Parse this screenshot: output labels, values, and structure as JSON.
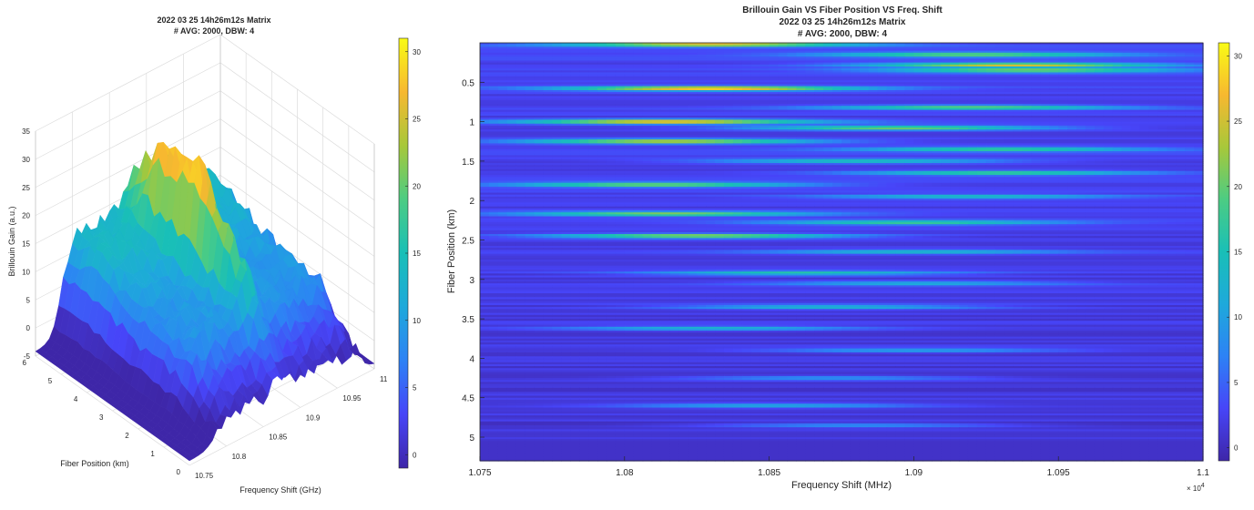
{
  "colors": {
    "colormap": [
      "#3e26a8",
      "#4745f8",
      "#2d82f5",
      "#1ea9db",
      "#19bfb7",
      "#4ccc83",
      "#a7c83a",
      "#f7b830",
      "#f9fb15"
    ],
    "background": "#ffffff",
    "axis": "#262626",
    "grid": "#dcdcdc"
  },
  "chart_data": [
    {
      "type": "surface",
      "title_line1": "2022 03 25 14h26m12s Matrix",
      "title_line2": "# AVG: 2000, DBW: 4",
      "xlabel": "Frequency Shift (GHz)",
      "ylabel": "Fiber Position  (km)",
      "zlabel": "Brillouin Gain (a.u.)",
      "x_ticks": [
        "10.75",
        "10.8",
        "10.85",
        "10.9",
        "10.95",
        "11"
      ],
      "y_ticks": [
        "0",
        "1",
        "2",
        "3",
        "4",
        "5",
        "6"
      ],
      "z_ticks": [
        "-5",
        "0",
        "5",
        "10",
        "15",
        "20",
        "25",
        "30",
        "35"
      ],
      "xlim": [
        10.75,
        11
      ],
      "ylim": [
        0,
        6
      ],
      "zlim": [
        -5,
        35
      ],
      "colorbar": {
        "ticks": [
          "0",
          "5",
          "10",
          "15",
          "20",
          "25",
          "30"
        ],
        "range": [
          -1,
          31
        ]
      },
      "grid": true
    },
    {
      "type": "heatmap",
      "title_line1": "Brillouin Gain VS Fiber Position VS Freq. Shift",
      "title_line2": "2022 03 25 14h26m12s Matrix",
      "title_line3": "# AVG: 2000, DBW: 4",
      "xlabel": "Frequency Shift (MHz)",
      "ylabel": "Fiber Position (km)",
      "x_ticks": [
        "1.075",
        "1.08",
        "1.085",
        "1.09",
        "1.095",
        "1.1"
      ],
      "x_exponent": "× 10",
      "x_exponent_power": "4",
      "y_ticks": [
        "0.5",
        "1",
        "1.5",
        "2",
        "2.5",
        "3",
        "3.5",
        "4",
        "4.5",
        "5"
      ],
      "xlim": [
        10750,
        11000
      ],
      "ylim": [
        0,
        5.3
      ],
      "colorbar": {
        "ticks": [
          "0",
          "5",
          "10",
          "15",
          "20",
          "25",
          "30"
        ],
        "range": [
          -1,
          31
        ]
      },
      "bright_bands": [
        {
          "pos": 0.02,
          "peak": 10830,
          "val": 26
        },
        {
          "pos": 0.15,
          "peak": 10920,
          "val": 19
        },
        {
          "pos": 0.28,
          "peak": 10935,
          "val": 24
        },
        {
          "pos": 0.35,
          "peak": 10940,
          "val": 20
        },
        {
          "pos": 0.58,
          "peak": 10830,
          "val": 28
        },
        {
          "pos": 0.82,
          "peak": 10920,
          "val": 18
        },
        {
          "pos": 1.0,
          "peak": 10815,
          "val": 27
        },
        {
          "pos": 1.08,
          "peak": 10895,
          "val": 20
        },
        {
          "pos": 1.25,
          "peak": 10815,
          "val": 25
        },
        {
          "pos": 1.35,
          "peak": 10930,
          "val": 16
        },
        {
          "pos": 1.5,
          "peak": 10880,
          "val": 14
        },
        {
          "pos": 1.65,
          "peak": 10930,
          "val": 17
        },
        {
          "pos": 1.8,
          "peak": 10810,
          "val": 21
        },
        {
          "pos": 1.95,
          "peak": 10920,
          "val": 12
        },
        {
          "pos": 2.17,
          "peak": 10815,
          "val": 20
        },
        {
          "pos": 2.28,
          "peak": 10900,
          "val": 16
        },
        {
          "pos": 2.45,
          "peak": 10825,
          "val": 22
        },
        {
          "pos": 2.65,
          "peak": 10900,
          "val": 11
        },
        {
          "pos": 2.92,
          "peak": 10860,
          "val": 14
        },
        {
          "pos": 3.05,
          "peak": 10900,
          "val": 10
        },
        {
          "pos": 3.35,
          "peak": 10870,
          "val": 12
        },
        {
          "pos": 3.62,
          "peak": 10830,
          "val": 11
        },
        {
          "pos": 3.9,
          "peak": 10900,
          "val": 9
        },
        {
          "pos": 4.25,
          "peak": 10870,
          "val": 8
        },
        {
          "pos": 4.6,
          "peak": 10850,
          "val": 10
        },
        {
          "pos": 4.85,
          "peak": 10880,
          "val": 8
        }
      ]
    }
  ]
}
